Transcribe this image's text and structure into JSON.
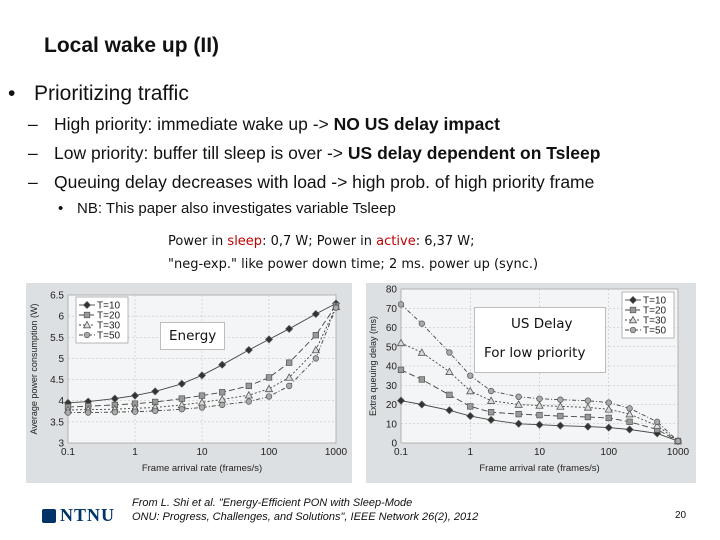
{
  "slide": {
    "title": "Local wake up (II)",
    "bullet1_marker": "•",
    "bullet1": "Prioritizing traffic",
    "sub_marker": "–",
    "sub1_pre": "High priority: immediate wake up -> ",
    "sub1_bold": "NO US delay impact",
    "sub2_pre": "Low priority: buffer till sleep is over -> ",
    "sub2_bold": "US delay dependent on Tsleep",
    "sub3": "Queuing delay decreases with load -> high prob. of high priority frame",
    "bullet3_marker": "•",
    "bullet3": "NB: This paper also investigates variable Tsleep",
    "params_line1_a": "Power in ",
    "params_line1_b": "sleep",
    "params_line1_c": ": 0,7 W; Power in ",
    "params_line1_d": "active",
    "params_line1_e": ": 6,37 W;",
    "params_line2": "\"neg-exp.\" like power down time; 2 ms. power up (sync.)",
    "callout_energy": "Energy",
    "callout_usdelay": "US Delay",
    "callout_lowprio": "For low priority",
    "ref_line1": "From  L. Shi et al. \"Energy-Efficient PON with Sleep-Mode",
    "ref_line2": "ONU: Progress, Challenges, and Solutions\", IEEE Network 26(2), 2012",
    "logo_text": "NTNU",
    "slide_number": "20",
    "colors": {
      "accent_red": "#c00000",
      "chart_bg": "#dde0e3",
      "logo_blue": "#003366"
    }
  },
  "chart_data": [
    {
      "type": "line",
      "title": "",
      "xlabel": "Frame arrival rate (frames/s)",
      "ylabel": "Average power consumption (W)",
      "xscale": "log",
      "x": [
        0.1,
        0.2,
        0.5,
        1,
        2,
        5,
        10,
        20,
        50,
        100,
        200,
        500,
        1000
      ],
      "xticks": [
        0.1,
        1,
        10,
        100,
        1000
      ],
      "xtick_labels": [
        "0.1",
        "1",
        "10",
        "100",
        "1000"
      ],
      "ylim": [
        3,
        6.5
      ],
      "yticks": [
        3,
        3.5,
        4,
        4.5,
        5,
        5.5,
        6,
        6.5
      ],
      "ytick_labels": [
        "3",
        "3.5",
        "4",
        "4.5",
        "5",
        "5.5",
        "6",
        "6.5"
      ],
      "grid": true,
      "legend_position": "top-left",
      "series": [
        {
          "name": "T=10",
          "marker": "diamond",
          "dash": "none",
          "values": [
            3.95,
            3.98,
            4.05,
            4.12,
            4.22,
            4.4,
            4.6,
            4.85,
            5.2,
            5.45,
            5.7,
            6.05,
            6.3
          ]
        },
        {
          "name": "T=20",
          "marker": "square",
          "dash": "6,3",
          "values": [
            3.85,
            3.87,
            3.9,
            3.93,
            3.97,
            4.05,
            4.12,
            4.2,
            4.35,
            4.55,
            4.9,
            5.55,
            6.25
          ]
        },
        {
          "name": "T=30",
          "marker": "triangle",
          "dash": "2,2",
          "values": [
            3.78,
            3.79,
            3.8,
            3.82,
            3.84,
            3.9,
            3.96,
            4.03,
            4.13,
            4.28,
            4.55,
            5.2,
            6.22
          ]
        },
        {
          "name": "T=50",
          "marker": "circle",
          "dash": "4,2,1,2",
          "values": [
            3.72,
            3.72,
            3.73,
            3.74,
            3.76,
            3.8,
            3.84,
            3.9,
            3.98,
            4.1,
            4.35,
            5.0,
            6.2
          ]
        }
      ]
    },
    {
      "type": "line",
      "title": "",
      "xlabel": "Frame arrival rate (frames/s)",
      "ylabel": "Extra queuing delay (ms)",
      "xscale": "log",
      "x": [
        0.1,
        0.2,
        0.5,
        1,
        2,
        5,
        10,
        20,
        50,
        100,
        200,
        500,
        1000
      ],
      "xticks": [
        0.1,
        1,
        10,
        100,
        1000
      ],
      "xtick_labels": [
        "0.1",
        "1",
        "10",
        "100",
        "1000"
      ],
      "ylim": [
        0,
        80
      ],
      "yticks": [
        0,
        10,
        20,
        30,
        40,
        50,
        60,
        70,
        80
      ],
      "ytick_labels": [
        "0",
        "10",
        "20",
        "30",
        "40",
        "50",
        "60",
        "70",
        "80"
      ],
      "grid": true,
      "legend_position": "top-right",
      "series": [
        {
          "name": "T=10",
          "marker": "diamond",
          "dash": "none",
          "values": [
            22,
            20,
            17,
            14,
            12,
            10,
            9.5,
            9,
            8.5,
            8,
            7,
            5,
            1
          ]
        },
        {
          "name": "T=20",
          "marker": "square",
          "dash": "6,3",
          "values": [
            38,
            33,
            25,
            19,
            16,
            15,
            14.5,
            14,
            13.5,
            13,
            11,
            7,
            1
          ]
        },
        {
          "name": "T=30",
          "marker": "triangle",
          "dash": "2,2",
          "values": [
            52,
            47,
            37,
            27,
            22,
            20,
            19.5,
            19,
            18.5,
            17.5,
            15,
            9,
            1
          ]
        },
        {
          "name": "T=50",
          "marker": "circle",
          "dash": "4,2,1,2",
          "values": [
            72,
            62,
            47,
            35,
            27,
            24,
            23,
            22.5,
            22,
            21,
            18,
            11,
            1
          ]
        }
      ]
    }
  ]
}
